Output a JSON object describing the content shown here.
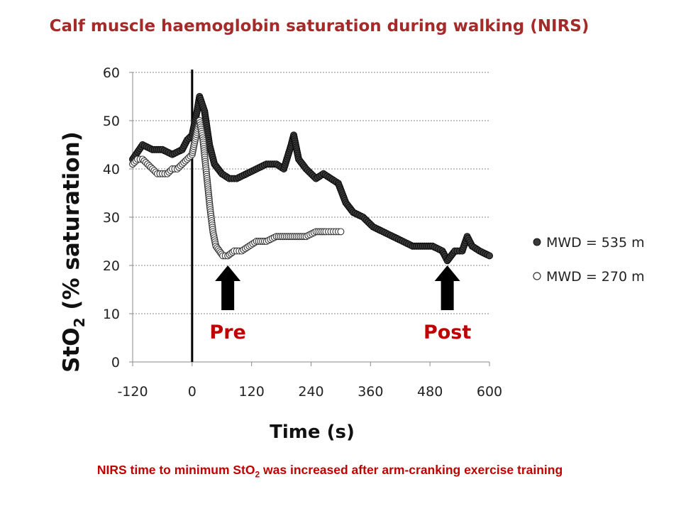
{
  "title": "Calf muscle haemoglobin saturation during walking (NIRS)",
  "footnote": {
    "before": "NIRS time to minimum StO",
    "sub": "2",
    "after": " was increased after arm-cranking exercise training"
  },
  "colors": {
    "title": "#a52a2a",
    "footnote": "#c00000",
    "marker_label": "#c00000"
  },
  "chart_data": {
    "type": "scatter",
    "xlabel": "Time (s)",
    "ylabel_main": "StO",
    "ylabel_sub": "2",
    "ylabel_rest": " (% saturation)",
    "xlim": [
      -120,
      600
    ],
    "ylim": [
      0,
      60
    ],
    "x_ticks": [
      -120,
      0,
      120,
      240,
      360,
      480,
      600
    ],
    "y_ticks": [
      0,
      10,
      20,
      30,
      40,
      50,
      60
    ],
    "grid": "horizontal dotted",
    "legend_position": "right",
    "vertical_line_x": 0,
    "series": [
      {
        "name": "MWD = 535 m",
        "marker": "filled",
        "points": [
          [
            -120,
            42
          ],
          [
            -100,
            45
          ],
          [
            -80,
            44
          ],
          [
            -60,
            44
          ],
          [
            -40,
            43
          ],
          [
            -20,
            44
          ],
          [
            -10,
            46
          ],
          [
            0,
            47
          ],
          [
            10,
            52
          ],
          [
            15,
            55
          ],
          [
            25,
            52
          ],
          [
            35,
            45
          ],
          [
            45,
            41
          ],
          [
            60,
            39
          ],
          [
            75,
            38
          ],
          [
            90,
            38
          ],
          [
            110,
            39
          ],
          [
            130,
            40
          ],
          [
            150,
            41
          ],
          [
            170,
            41
          ],
          [
            185,
            40
          ],
          [
            200,
            45
          ],
          [
            205,
            47
          ],
          [
            215,
            42
          ],
          [
            230,
            40
          ],
          [
            250,
            38
          ],
          [
            265,
            39
          ],
          [
            280,
            38
          ],
          [
            295,
            37
          ],
          [
            310,
            33
          ],
          [
            325,
            31
          ],
          [
            345,
            30
          ],
          [
            365,
            28
          ],
          [
            385,
            27
          ],
          [
            405,
            26
          ],
          [
            425,
            25
          ],
          [
            445,
            24
          ],
          [
            465,
            24
          ],
          [
            485,
            24
          ],
          [
            505,
            23
          ],
          [
            515,
            21
          ],
          [
            530,
            23
          ],
          [
            545,
            23
          ],
          [
            555,
            26
          ],
          [
            565,
            24
          ],
          [
            580,
            23
          ],
          [
            600,
            22
          ]
        ]
      },
      {
        "name": "MWD = 270 m",
        "marker": "open",
        "points": [
          [
            -120,
            41
          ],
          [
            -110,
            42
          ],
          [
            -100,
            42
          ],
          [
            -90,
            41
          ],
          [
            -80,
            40
          ],
          [
            -70,
            39
          ],
          [
            -60,
            39
          ],
          [
            -50,
            39
          ],
          [
            -40,
            40
          ],
          [
            -30,
            40
          ],
          [
            -20,
            41
          ],
          [
            -10,
            42
          ],
          [
            0,
            43
          ],
          [
            10,
            48
          ],
          [
            15,
            50
          ],
          [
            22,
            46
          ],
          [
            30,
            38
          ],
          [
            36,
            32
          ],
          [
            42,
            27
          ],
          [
            48,
            24
          ],
          [
            55,
            23
          ],
          [
            62,
            22
          ],
          [
            72,
            22
          ],
          [
            85,
            23
          ],
          [
            100,
            23
          ],
          [
            115,
            24
          ],
          [
            130,
            25
          ],
          [
            150,
            25
          ],
          [
            170,
            26
          ],
          [
            190,
            26
          ],
          [
            210,
            26
          ],
          [
            230,
            26
          ],
          [
            250,
            27
          ],
          [
            270,
            27
          ],
          [
            285,
            27
          ],
          [
            300,
            27
          ]
        ]
      }
    ],
    "annotations": [
      {
        "label": "Pre",
        "x": 72
      },
      {
        "label": "Post",
        "x": 515
      }
    ]
  }
}
